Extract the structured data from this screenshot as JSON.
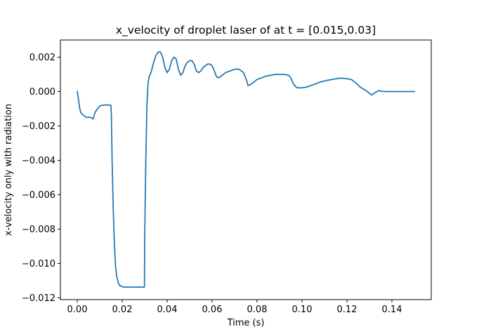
{
  "chart_data": {
    "type": "line",
    "title": "x_velocity of droplet laser of at t = [0.015,0.03]",
    "xlabel": "Time (s)",
    "ylabel": "x-velocity only with radiation",
    "xlim": [
      -0.0075,
      0.1575
    ],
    "ylim": [
      -0.0121,
      0.003
    ],
    "grid": false,
    "xticks": [
      {
        "value": 0.0,
        "label": "0.00"
      },
      {
        "value": 0.02,
        "label": "0.02"
      },
      {
        "value": 0.04,
        "label": "0.04"
      },
      {
        "value": 0.06,
        "label": "0.06"
      },
      {
        "value": 0.08,
        "label": "0.08"
      },
      {
        "value": 0.1,
        "label": "0.10"
      },
      {
        "value": 0.12,
        "label": "0.12"
      },
      {
        "value": 0.14,
        "label": "0.14"
      }
    ],
    "yticks": [
      {
        "value": 0.002,
        "label": "0.002"
      },
      {
        "value": 0.0,
        "label": "0.000"
      },
      {
        "value": -0.002,
        "label": "−0.002"
      },
      {
        "value": -0.004,
        "label": "−0.004"
      },
      {
        "value": -0.006,
        "label": "−0.006"
      },
      {
        "value": -0.008,
        "label": "−0.008"
      },
      {
        "value": -0.01,
        "label": "−0.010"
      },
      {
        "value": -0.012,
        "label": "−0.012"
      }
    ],
    "series": [
      {
        "color": "#1f77b4",
        "x": [
          0.0,
          0.0005,
          0.001,
          0.0015,
          0.002,
          0.003,
          0.004,
          0.005,
          0.006,
          0.007,
          0.008,
          0.009,
          0.01,
          0.011,
          0.012,
          0.013,
          0.014,
          0.015,
          0.0152,
          0.0155,
          0.016,
          0.0165,
          0.017,
          0.0175,
          0.018,
          0.0185,
          0.019,
          0.0195,
          0.02,
          0.021,
          0.022,
          0.024,
          0.026,
          0.028,
          0.0299,
          0.03,
          0.0305,
          0.031,
          0.0315,
          0.032,
          0.0325,
          0.033,
          0.034,
          0.035,
          0.036,
          0.037,
          0.038,
          0.039,
          0.04,
          0.041,
          0.042,
          0.043,
          0.044,
          0.045,
          0.046,
          0.047,
          0.048,
          0.049,
          0.05,
          0.051,
          0.052,
          0.053,
          0.054,
          0.055,
          0.056,
          0.057,
          0.058,
          0.059,
          0.06,
          0.061,
          0.062,
          0.063,
          0.064,
          0.065,
          0.066,
          0.068,
          0.07,
          0.072,
          0.074,
          0.0755,
          0.076,
          0.077,
          0.078,
          0.079,
          0.08,
          0.082,
          0.084,
          0.086,
          0.088,
          0.09,
          0.092,
          0.094,
          0.095,
          0.096,
          0.097,
          0.098,
          0.1,
          0.102,
          0.105,
          0.108,
          0.111,
          0.114,
          0.117,
          0.12,
          0.122,
          0.124,
          0.126,
          0.128,
          0.13,
          0.131,
          0.132,
          0.134,
          0.136,
          0.138,
          0.14,
          0.15
        ],
        "y": [
          0.0,
          -0.0004,
          -0.0009,
          -0.0012,
          -0.0013,
          -0.0014,
          -0.0015,
          -0.0015,
          -0.0015,
          -0.0016,
          -0.0012,
          -0.001,
          -0.00085,
          -0.0008,
          -0.00078,
          -0.00078,
          -0.00078,
          -0.0008,
          -0.0015,
          -0.004,
          -0.0068,
          -0.0088,
          -0.0101,
          -0.0107,
          -0.011,
          -0.0112,
          -0.0113,
          -0.0113,
          -0.01135,
          -0.01137,
          -0.01137,
          -0.01137,
          -0.01137,
          -0.01137,
          -0.01137,
          -0.0085,
          -0.004,
          -0.0008,
          0.0005,
          0.0009,
          0.001,
          0.0012,
          0.0017,
          0.0021,
          0.0023,
          0.0023,
          0.002,
          0.0014,
          0.0011,
          0.0013,
          0.0018,
          0.002,
          0.0019,
          0.0013,
          0.00095,
          0.0011,
          0.0015,
          0.0017,
          0.0018,
          0.0018,
          0.0016,
          0.0012,
          0.0011,
          0.0012,
          0.0014,
          0.0015,
          0.0016,
          0.0016,
          0.0015,
          0.0012,
          0.00085,
          0.0008,
          0.0009,
          0.001,
          0.0011,
          0.0012,
          0.0013,
          0.0013,
          0.0011,
          0.0006,
          0.00035,
          0.0004,
          0.0005,
          0.0006,
          0.0007,
          0.0008,
          0.0009,
          0.00095,
          0.001,
          0.001,
          0.001,
          0.00095,
          0.0008,
          0.0005,
          0.0003,
          0.00022,
          0.00022,
          0.00026,
          0.0004,
          0.00055,
          0.00065,
          0.00072,
          0.00078,
          0.00075,
          0.0007,
          0.0005,
          0.00025,
          0.0001,
          -0.0001,
          -0.0002,
          -0.0001,
          5e-05,
          1e-05,
          0.0,
          0.0,
          0.0
        ]
      }
    ]
  }
}
